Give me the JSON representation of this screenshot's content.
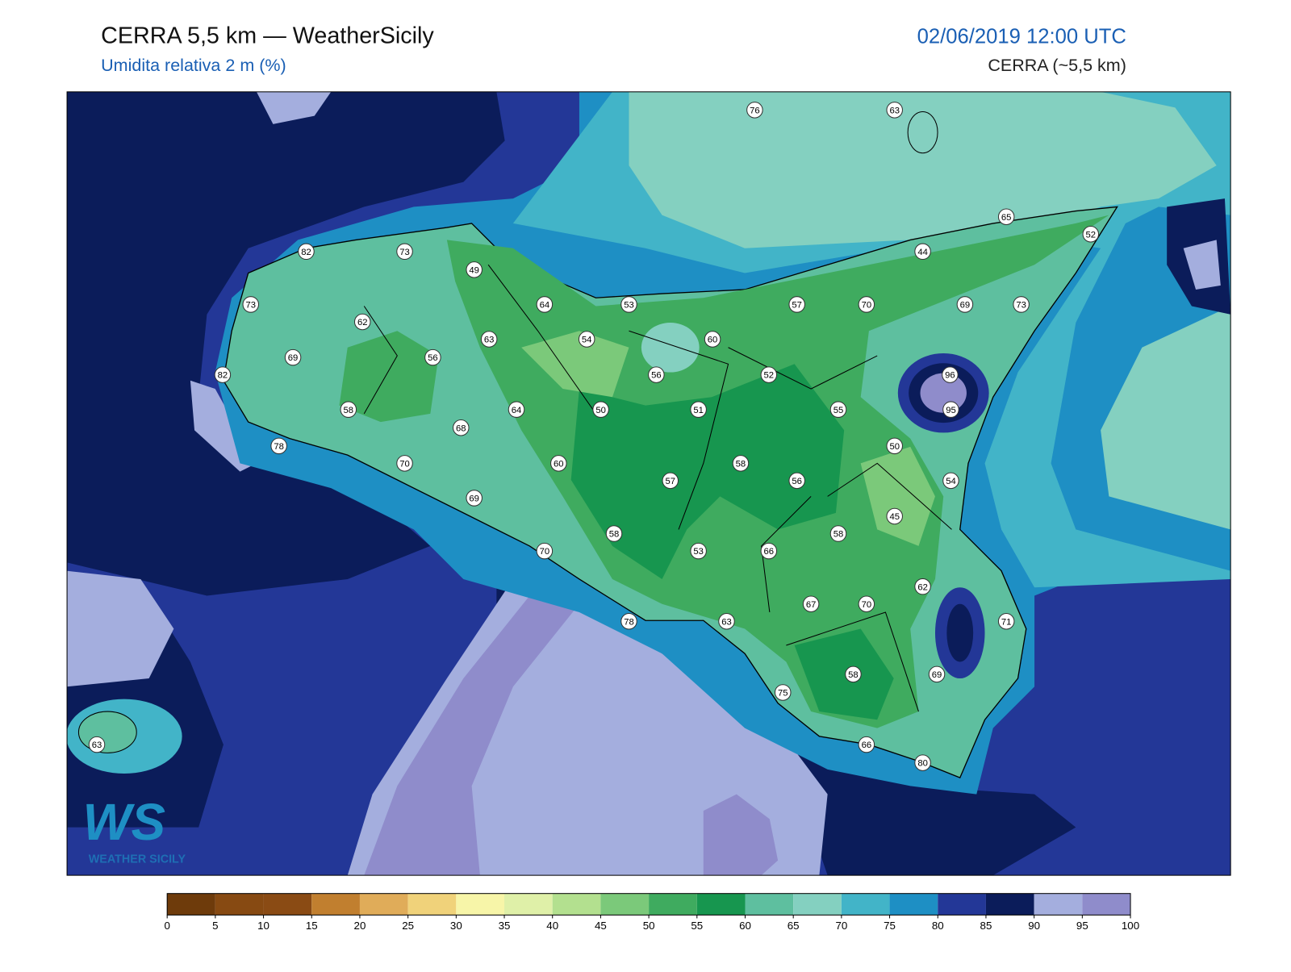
{
  "header": {
    "title": "CERRA 5,5 km — WeatherSicily",
    "subtitle": "Umidita relativa 2 m (%)",
    "date": "02/06/2019 12:00 UTC",
    "model": "CERRA (~5,5 km)"
  },
  "stations": [
    76,
    63,
    65,
    52,
    44,
    82,
    73,
    49,
    73,
    64,
    53,
    57,
    70,
    69,
    73,
    62,
    63,
    54,
    60,
    69,
    56,
    82,
    56,
    52,
    96,
    58,
    64,
    50,
    51,
    55,
    95,
    68,
    78,
    50,
    70,
    60,
    58,
    57,
    56,
    54,
    69,
    45,
    58,
    58,
    70,
    53,
    66,
    62,
    67,
    70,
    78,
    63,
    71,
    58,
    69,
    75,
    66,
    80,
    63
  ],
  "colorbar": {
    "ticks": [
      0,
      5,
      10,
      15,
      20,
      25,
      30,
      35,
      40,
      45,
      50,
      55,
      60,
      65,
      70,
      75,
      80,
      85,
      90,
      95,
      100
    ],
    "colors": [
      "#6e3b0b",
      "#874a12",
      "#8a4b14",
      "#c17f2f",
      "#e0ac59",
      "#f0d27a",
      "#f7f5a8",
      "#dff0a8",
      "#b3e08f",
      "#7bc97a",
      "#3fab5f",
      "#17964f",
      "#5ebf9f",
      "#84d0c0",
      "#42b4c8",
      "#1e8fc4",
      "#233797",
      "#0b1c5a",
      "#a4aede",
      "#8f8ccb"
    ]
  },
  "logo": {
    "mark": "WS",
    "name": "WEATHER SICILY"
  }
}
